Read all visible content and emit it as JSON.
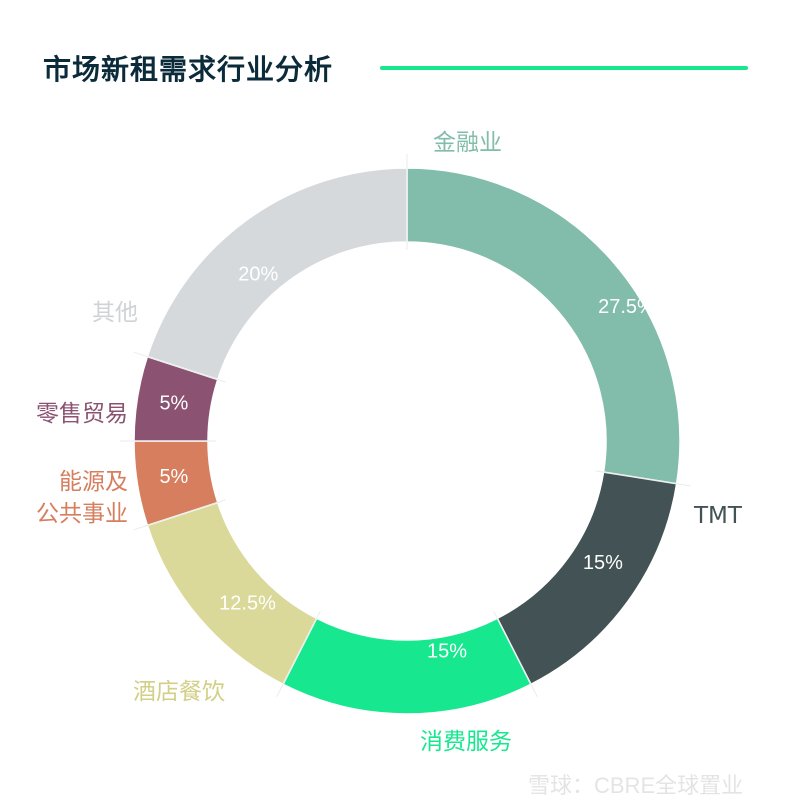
{
  "title": "市场新租需求行业分析",
  "watermark": "雪球：CBRE全球置业",
  "chart_data": {
    "type": "pie",
    "title": "市场新租需求行业分析",
    "series": [
      {
        "label": "金融业",
        "value": 27.5,
        "pct_text": "27.5%",
        "color": "#82bcab",
        "label_color": "#82bcab"
      },
      {
        "label": "TMT",
        "value": 15,
        "pct_text": "15%",
        "color": "#435254",
        "label_color": "#435254"
      },
      {
        "label": "消费服务",
        "value": 15,
        "pct_text": "15%",
        "color": "#17e88f",
        "label_color": "#17e88f"
      },
      {
        "label": "酒店餐饮",
        "value": 12.5,
        "pct_text": "12.5%",
        "color": "#dbd99a",
        "label_color": "#d2cf86"
      },
      {
        "label": "能源及\n公共事业",
        "value": 5,
        "pct_text": "5%",
        "color": "#d67e5d",
        "label_color": "#d67e5d"
      },
      {
        "label": "零售贸易",
        "value": 5,
        "pct_text": "5%",
        "color": "#8b5271",
        "label_color": "#8b5271"
      },
      {
        "label": "其他",
        "value": 20,
        "pct_text": "20%",
        "color": "#d5d9dc",
        "label_color": "#cfd3d6"
      }
    ],
    "legend": "none"
  }
}
